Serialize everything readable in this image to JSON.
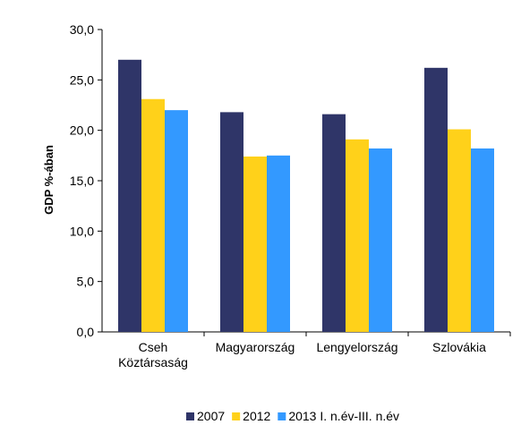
{
  "chart_data": {
    "type": "bar",
    "categories": [
      "Cseh Köztársaság",
      "Magyarország",
      "Lengyelország",
      "Szlovákia"
    ],
    "category_lines": [
      [
        "Cseh",
        "Köztársaság"
      ],
      [
        "Magyarország"
      ],
      [
        "Lengyelország"
      ],
      [
        "Szlovákia"
      ]
    ],
    "series": [
      {
        "name": "2007",
        "values": [
          27.0,
          21.8,
          21.6,
          26.2
        ],
        "color": "#2f3568"
      },
      {
        "name": "2012",
        "values": [
          23.1,
          17.4,
          19.1,
          20.1
        ],
        "color": "#ffd11a"
      },
      {
        "name": "2013 I. n.év-III. n.év",
        "values": [
          22.0,
          17.5,
          18.2,
          18.2
        ],
        "color": "#3399ff"
      }
    ],
    "ylabel": "GDP %-ában",
    "ylim": [
      0,
      30
    ],
    "yticks": [
      "0,0",
      "5,0",
      "10,0",
      "15,0",
      "20,0",
      "25,0",
      "30,0"
    ],
    "ytick_values": [
      0,
      5,
      10,
      15,
      20,
      25,
      30
    ],
    "grid": false,
    "legend_position": "bottom"
  }
}
